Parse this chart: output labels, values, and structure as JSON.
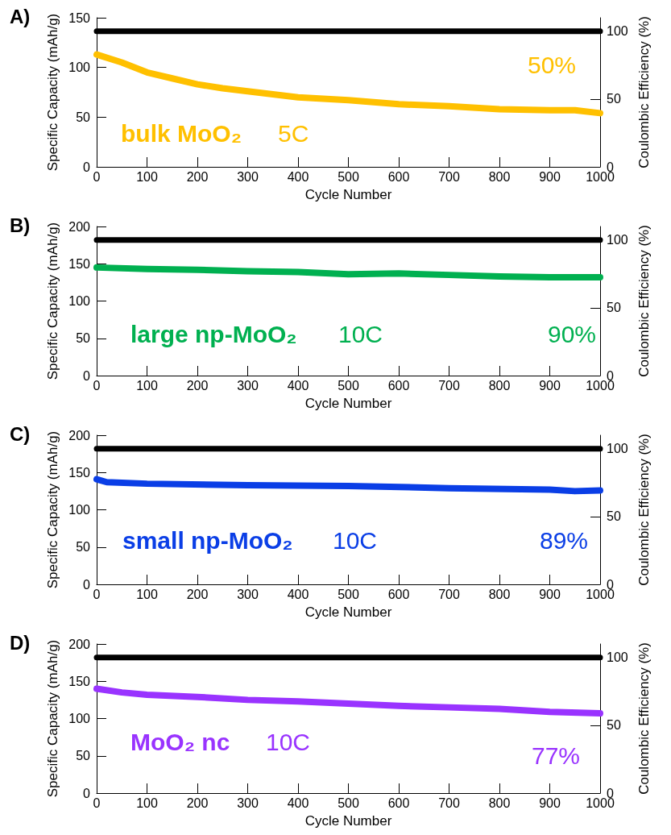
{
  "chart_data": [
    {
      "type": "line",
      "title": "A)",
      "xlabel": "Cycle Number",
      "ylabel": "Specific Capacity (mAh/g)",
      "y2label": "Coulombic Efficiency (%)",
      "annotations": [
        "bulk MoO₂",
        "5C",
        "50%"
      ],
      "xlim": [
        0,
        1000
      ],
      "xticks": [
        0,
        100,
        200,
        300,
        400,
        500,
        600,
        700,
        800,
        900,
        1000
      ],
      "ylim": [
        0,
        150
      ],
      "yticks": [
        0,
        50,
        100,
        150
      ],
      "y2lim": [
        0,
        110
      ],
      "y2ticks": [
        0,
        50,
        100
      ],
      "grid": false,
      "marker": "none",
      "line_style": "solid",
      "series": [
        {
          "color": "#ffc000",
          "x": [
            0,
            50,
            100,
            150,
            200,
            250,
            300,
            350,
            400,
            500,
            600,
            700,
            800,
            900,
            950,
            1000
          ],
          "values": [
            113,
            105,
            95,
            89,
            83,
            79,
            76,
            73,
            70,
            67,
            63,
            61,
            58,
            57,
            57,
            54
          ]
        },
        {
          "color": "#000000",
          "axis": "y2",
          "x": [
            0,
            250,
            500,
            750,
            1000
          ],
          "values": [
            100,
            100,
            100,
            100,
            100
          ]
        }
      ]
    },
    {
      "type": "line",
      "title": "B)",
      "xlabel": "Cycle Number",
      "ylabel": "Specific Capacity (mAh/g)",
      "y2label": "Coulombic Efficiency (%)",
      "annotations": [
        "large np-MoO₂",
        "10C",
        "90%"
      ],
      "xlim": [
        0,
        1000
      ],
      "xticks": [
        0,
        100,
        200,
        300,
        400,
        500,
        600,
        700,
        800,
        900,
        1000
      ],
      "ylim": [
        0,
        200
      ],
      "yticks": [
        0,
        50,
        100,
        150,
        200
      ],
      "y2lim": [
        0,
        110
      ],
      "y2ticks": [
        0,
        50,
        100
      ],
      "grid": false,
      "marker": "none",
      "line_style": "solid",
      "series": [
        {
          "color": "#00b050",
          "x": [
            0,
            100,
            200,
            300,
            400,
            500,
            600,
            700,
            800,
            900,
            1000
          ],
          "values": [
            145,
            143,
            142,
            140,
            139,
            136,
            137,
            135,
            133,
            132,
            132
          ]
        },
        {
          "color": "#000000",
          "axis": "y2",
          "x": [
            0,
            250,
            500,
            750,
            1000
          ],
          "values": [
            100,
            100,
            100,
            100,
            100
          ]
        }
      ]
    },
    {
      "type": "line",
      "title": "C)",
      "xlabel": "Cycle Number",
      "ylabel": "Specific Capacity (mAh/g)",
      "y2label": "Coulombic Efficiency (%)",
      "annotations": [
        "small np-MoO₂",
        "10C",
        "89%"
      ],
      "xlim": [
        0,
        1000
      ],
      "xticks": [
        0,
        100,
        200,
        300,
        400,
        500,
        600,
        700,
        800,
        900,
        1000
      ],
      "ylim": [
        0,
        200
      ],
      "yticks": [
        0,
        50,
        100,
        150,
        200
      ],
      "y2lim": [
        0,
        110
      ],
      "y2ticks": [
        0,
        50,
        100
      ],
      "grid": false,
      "marker": "none",
      "line_style": "solid",
      "series": [
        {
          "color": "#0a3ee6",
          "x": [
            0,
            20,
            100,
            300,
            500,
            700,
            900,
            950,
            1000
          ],
          "values": [
            141,
            137,
            135,
            133,
            132,
            129,
            127,
            125,
            126
          ]
        },
        {
          "color": "#000000",
          "axis": "y2",
          "x": [
            0,
            250,
            500,
            750,
            1000
          ],
          "values": [
            100,
            100,
            100,
            100,
            100
          ]
        }
      ]
    },
    {
      "type": "line",
      "title": "D)",
      "xlabel": "Cycle Number",
      "ylabel": "Specific Capacity (mAh/g)",
      "y2label": "Coulombic Efficiency (%)",
      "annotations": [
        "MoO₂ nc",
        "10C",
        "77%"
      ],
      "xlim": [
        0,
        1000
      ],
      "xticks": [
        0,
        100,
        200,
        300,
        400,
        500,
        600,
        700,
        800,
        900,
        1000
      ],
      "ylim": [
        0,
        200
      ],
      "yticks": [
        0,
        50,
        100,
        150,
        200
      ],
      "y2lim": [
        0,
        110
      ],
      "y2ticks": [
        0,
        50,
        100
      ],
      "grid": false,
      "marker": "none",
      "line_style": "solid",
      "series": [
        {
          "color": "#9933ff",
          "x": [
            0,
            50,
            100,
            200,
            300,
            400,
            500,
            600,
            700,
            800,
            900,
            1000
          ],
          "values": [
            140,
            135,
            132,
            129,
            125,
            123,
            120,
            117,
            115,
            113,
            109,
            107
          ]
        },
        {
          "color": "#000000",
          "axis": "y2",
          "x": [
            0,
            250,
            500,
            750,
            1000
          ],
          "values": [
            100,
            100,
            100,
            100,
            100
          ]
        }
      ]
    }
  ]
}
